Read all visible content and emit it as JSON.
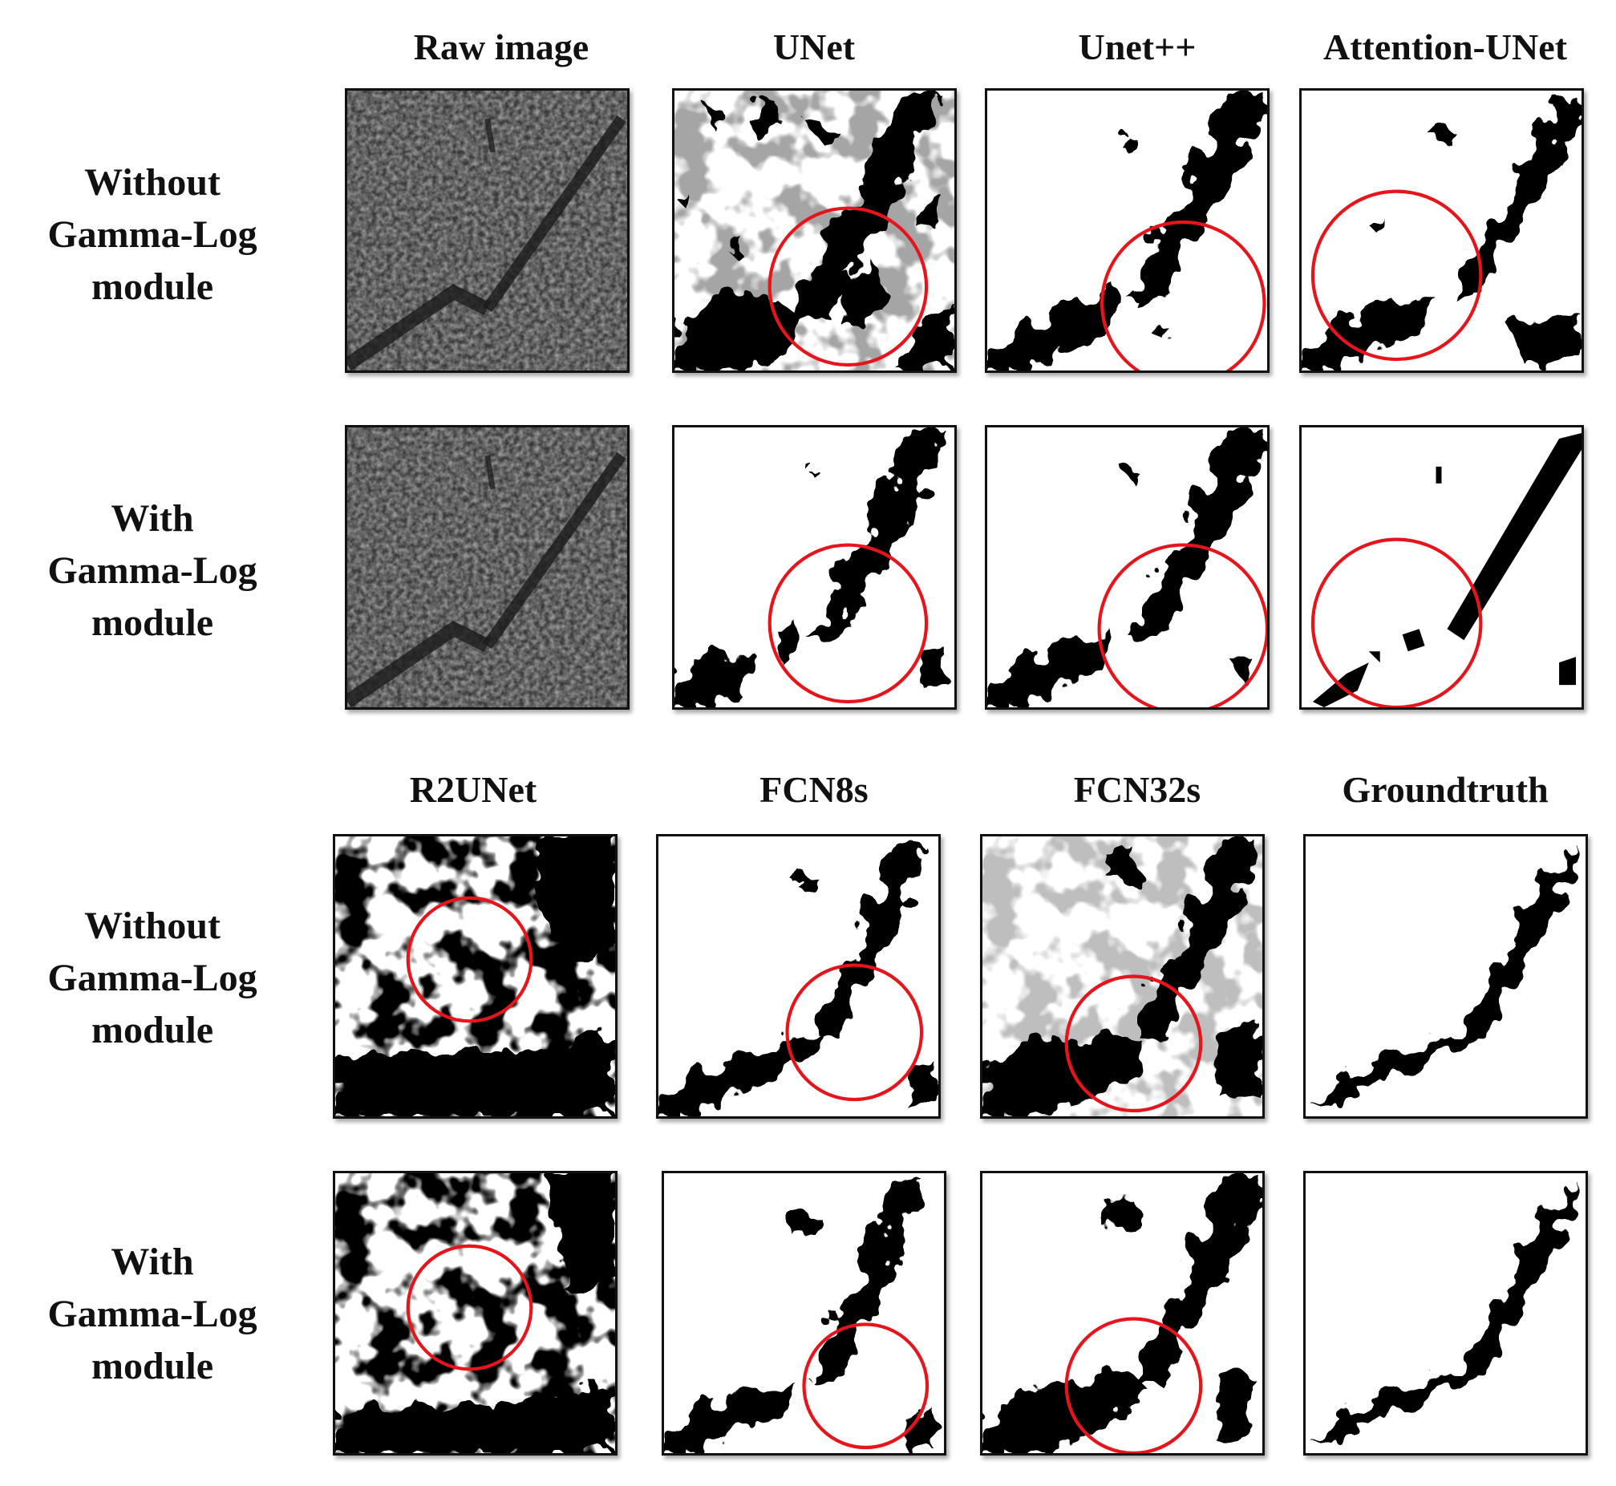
{
  "top_section": {
    "column_titles": [
      "Raw image",
      "UNet",
      "Unet++",
      "Attention-UNet"
    ]
  },
  "bottom_section": {
    "column_titles": [
      "R2UNet",
      "FCN8s",
      "FCN32s",
      "Groundtruth"
    ]
  },
  "row_labels": {
    "without": [
      "Without",
      "Gamma-Log",
      "module"
    ],
    "with": [
      "With",
      "Gamma-Log",
      "module"
    ]
  },
  "colors": {
    "highlight_circle": "#e8141c",
    "mask_foreground": "#000000",
    "mask_background": "#ffffff"
  }
}
